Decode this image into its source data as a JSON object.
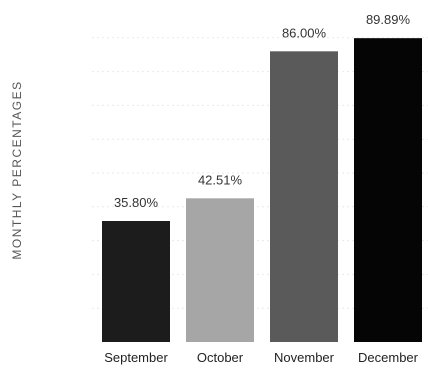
{
  "chart_data": {
    "type": "bar",
    "categories": [
      "September",
      "October",
      "November",
      "December"
    ],
    "values": [
      35.8,
      42.51,
      86.0,
      89.89
    ],
    "data_labels": [
      "35.80%",
      "42.51%",
      "86.00%",
      "89.89%"
    ],
    "colors": [
      "#1c1c1c",
      "#a6a6a6",
      "#5a5a5a",
      "#050505"
    ],
    "ylabel": "MONTHLY PERCENTAGES",
    "xlabel": "",
    "title": "",
    "ylim": [
      0,
      100
    ],
    "grid": true,
    "legend": "none"
  }
}
